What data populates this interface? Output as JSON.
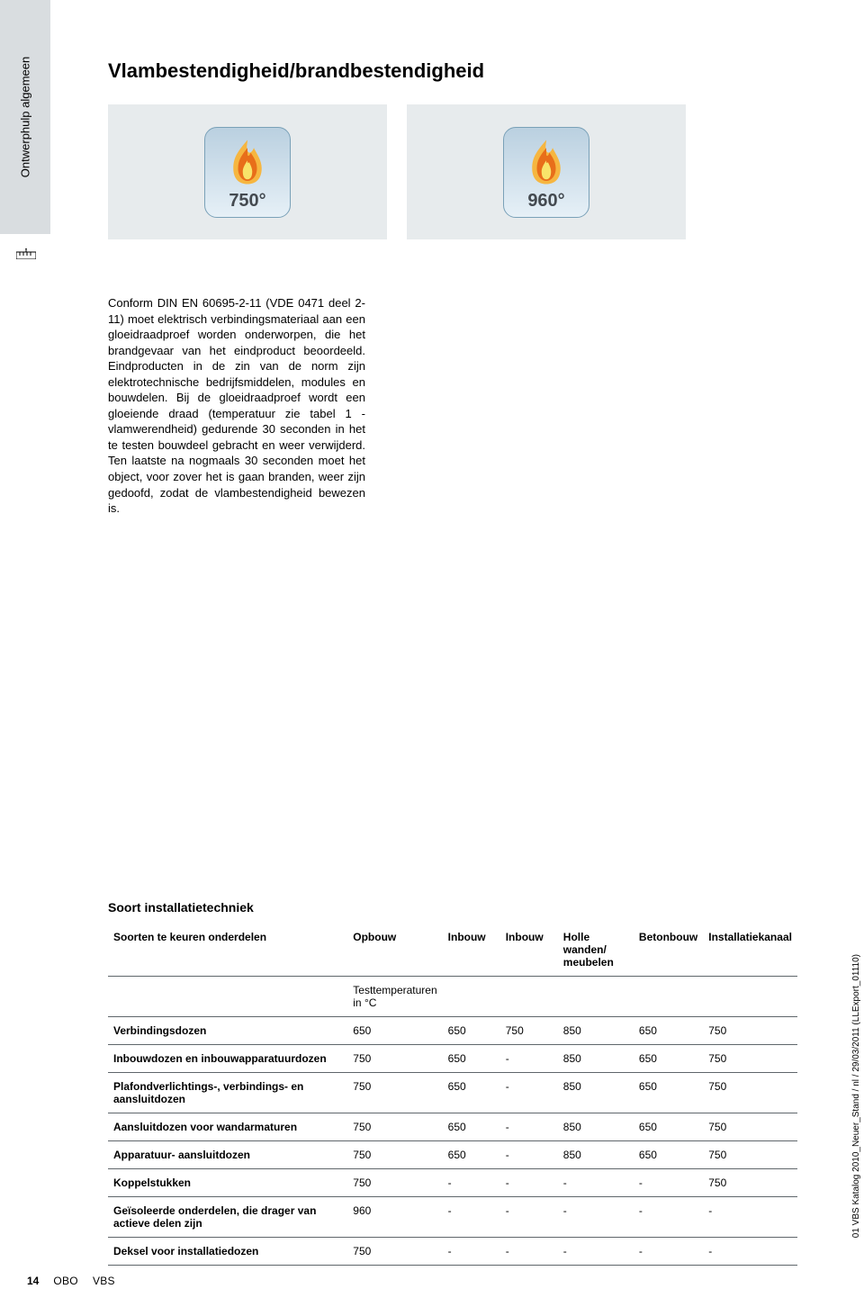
{
  "sidebar": {
    "label": "Ontwerphulp algemeen"
  },
  "title": "Vlambestendigheid/brandbestendigheid",
  "emblems": [
    {
      "label": "750°"
    },
    {
      "label": "960°"
    }
  ],
  "flame_colors": {
    "outer": "#f6b640",
    "mid": "#e86e1a",
    "inner": "#f8e46a"
  },
  "emblem_bg_top": "#bad0e0",
  "emblem_bg_bottom": "#e6f0f7",
  "emblem_border": "#7aa1b8",
  "img_box_bg": "#e7ebed",
  "sidebar_bg": "#d9dde0",
  "body_text": "Conform DIN EN 60695-2-11 (VDE 0471 deel 2-11) moet elektrisch verbindingsmateriaal aan een gloeidraadproef worden onderworpen, die het brandgevaar van het eindproduct beoordeeld. Eindproducten in de zin van de norm zijn elektrotechnische bedrijfsmiddelen, modules en bouwdelen. Bij de gloeidraadproef wordt een gloeiende draad (temperatuur zie tabel 1 - vlamwerendheid) gedurende 30 seconden in het te testen bouwdeel gebracht en weer verwijderd. Ten laatste na nogmaals 30 seconden moet het object, voor zover het is gaan branden, weer zijn gedoofd, zodat de vlambestendigheid bewezen is.",
  "table": {
    "title": "Soort installatietechniek",
    "columns": [
      "Soorten te keuren onderdelen",
      "Opbouw",
      "Inbouw",
      "Inbouw",
      "Holle wanden/ meubelen",
      "Betonbouw",
      "Installatiekanaal"
    ],
    "subheader": "Testtemperaturen in °C",
    "rows": [
      {
        "name": "Verbindingsdozen",
        "values": [
          "650",
          "650",
          "750",
          "850",
          "650",
          "750"
        ]
      },
      {
        "name": "Inbouwdozen en inbouwapparatuurdozen",
        "values": [
          "750",
          "650",
          "-",
          "850",
          "650",
          "750"
        ]
      },
      {
        "name": "Plafondverlichtings-, verbindings- en aansluitdozen",
        "values": [
          "750",
          "650",
          "-",
          "850",
          "650",
          "750"
        ]
      },
      {
        "name": "Aansluitdozen voor wandarmaturen",
        "values": [
          "750",
          "650",
          "-",
          "850",
          "650",
          "750"
        ]
      },
      {
        "name": "Apparatuur- aansluitdozen",
        "values": [
          "750",
          "650",
          "-",
          "850",
          "650",
          "750"
        ]
      },
      {
        "name": "Koppelstukken",
        "values": [
          "750",
          "-",
          "-",
          "-",
          "-",
          "750"
        ]
      },
      {
        "name": "Geïsoleerde onderdelen, die drager van actieve delen zijn",
        "values": [
          "960",
          "-",
          "-",
          "-",
          "-",
          "-"
        ]
      },
      {
        "name": "Deksel voor installatiedozen",
        "values": [
          "750",
          "-",
          "-",
          "-",
          "-",
          "-"
        ]
      }
    ]
  },
  "right_gutter_text": "01 VBS Katalog 2010_Neuer_Stand / nl / 29/03/2011 (LLExport_01110)",
  "footer": {
    "page": "14",
    "brand": "OBO",
    "model": "VBS"
  }
}
